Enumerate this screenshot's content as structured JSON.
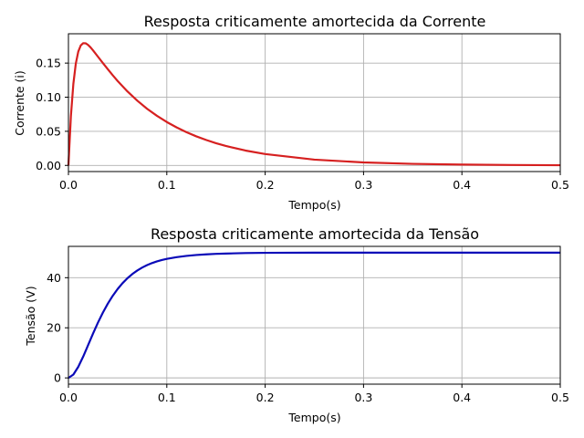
{
  "chart_data": [
    {
      "type": "line",
      "title": "Resposta criticamente amortecida da Corrente",
      "xlabel": "Tempo(s)",
      "ylabel": "Corrente (i)",
      "xlim": [
        0,
        0.5
      ],
      "ylim": [
        -0.009,
        0.193
      ],
      "xticks": [
        0.0,
        0.1,
        0.2,
        0.3,
        0.4,
        0.5
      ],
      "xtick_labels": [
        "0.0",
        "0.1",
        "0.2",
        "0.3",
        "0.4",
        "0.5"
      ],
      "yticks": [
        0.0,
        0.05,
        0.1,
        0.15
      ],
      "ytick_labels": [
        "0.00",
        "0.05",
        "0.10",
        "0.15"
      ],
      "grid": true,
      "series": [
        {
          "color": "#d62020",
          "x": [
            0,
            0.0025,
            0.005,
            0.0075,
            0.01,
            0.0125,
            0.015,
            0.0175,
            0.02,
            0.0225,
            0.025,
            0.03,
            0.035,
            0.04,
            0.045,
            0.05,
            0.06,
            0.07,
            0.08,
            0.09,
            0.1,
            0.11,
            0.12,
            0.13,
            0.14,
            0.15,
            0.16,
            0.18,
            0.2,
            0.25,
            0.3,
            0.35,
            0.4,
            0.45,
            0.5
          ],
          "y": [
            0,
            0.0722,
            0.1195,
            0.1493,
            0.1668,
            0.1758,
            0.1792,
            0.179,
            0.1766,
            0.173,
            0.1687,
            0.1594,
            0.1501,
            0.141,
            0.1322,
            0.1238,
            0.1084,
            0.0949,
            0.083,
            0.0727,
            0.0636,
            0.0557,
            0.0487,
            0.0426,
            0.0373,
            0.0326,
            0.0285,
            0.0218,
            0.0167,
            0.0085,
            0.0044,
            0.0023,
            0.0012,
            0.0006,
            0.0003
          ]
        }
      ]
    },
    {
      "type": "line",
      "title": "Resposta criticamente amortecida da Tensão",
      "xlabel": "Tempo(s)",
      "ylabel": "Tensão (V)",
      "xlim": [
        0,
        0.5
      ],
      "ylim": [
        -2.5,
        52.5
      ],
      "xticks": [
        0.0,
        0.1,
        0.2,
        0.3,
        0.4,
        0.5
      ],
      "xtick_labels": [
        "0.0",
        "0.1",
        "0.2",
        "0.3",
        "0.4",
        "0.5"
      ],
      "yticks": [
        0,
        20,
        40
      ],
      "ytick_labels": [
        "0",
        "20",
        "40"
      ],
      "grid": true,
      "series": [
        {
          "color": "#0a0ab8",
          "x": [
            0,
            0.005,
            0.01,
            0.015,
            0.02,
            0.025,
            0.03,
            0.035,
            0.04,
            0.045,
            0.05,
            0.055,
            0.06,
            0.065,
            0.07,
            0.075,
            0.08,
            0.085,
            0.09,
            0.095,
            0.1,
            0.11,
            0.12,
            0.13,
            0.14,
            0.15,
            0.16,
            0.18,
            0.2,
            0.25,
            0.3,
            0.4,
            0.5
          ],
          "y": [
            0,
            1.32,
            4.42,
            8.51,
            13.08,
            17.69,
            22.06,
            26.05,
            29.62,
            32.75,
            35.47,
            37.81,
            39.79,
            41.47,
            42.87,
            44.05,
            45.03,
            45.84,
            46.51,
            47.06,
            47.52,
            48.21,
            48.7,
            49.06,
            49.32,
            49.51,
            49.64,
            49.83,
            49.92,
            49.99,
            50.0,
            50.0,
            50.0
          ]
        }
      ]
    }
  ]
}
